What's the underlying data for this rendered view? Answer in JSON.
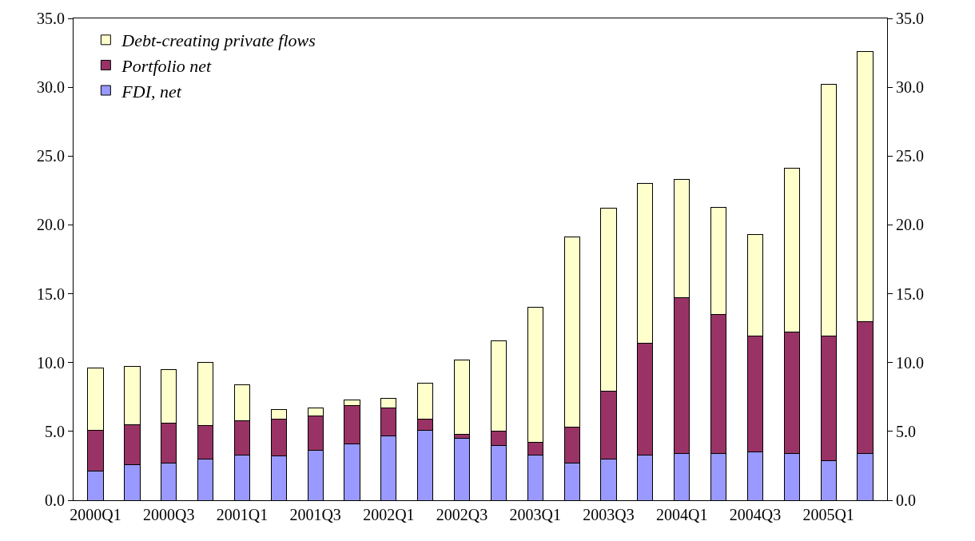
{
  "chart_data": {
    "type": "bar",
    "stacked": true,
    "categories": [
      "2000Q1",
      null,
      "2000Q3",
      null,
      "2001Q1",
      null,
      "2001Q3",
      null,
      "2002Q1",
      null,
      "2002Q3",
      null,
      "2003Q1",
      null,
      "2003Q3",
      null,
      "2004Q1",
      null,
      "2004Q3",
      null,
      "2005Q1",
      null
    ],
    "series": [
      {
        "name": "FDI, net",
        "color": "#9999ff",
        "values": [
          2.1,
          2.6,
          2.7,
          3.0,
          3.3,
          3.2,
          3.6,
          4.1,
          4.7,
          5.1,
          4.5,
          4.0,
          3.3,
          2.7,
          3.0,
          3.3,
          3.4,
          3.4,
          3.5,
          3.4,
          2.9,
          3.4
        ]
      },
      {
        "name": "Portfolio net",
        "color": "#993366",
        "values": [
          3.0,
          2.9,
          2.9,
          2.4,
          2.5,
          2.7,
          2.5,
          2.8,
          2.0,
          0.8,
          0.3,
          1.0,
          0.9,
          2.6,
          4.9,
          8.1,
          11.3,
          10.1,
          8.4,
          8.8,
          9.0,
          9.6
        ]
      },
      {
        "name": "Debt-creating private flows",
        "color": "#ffffcc",
        "values": [
          4.5,
          4.2,
          3.9,
          4.6,
          2.6,
          0.7,
          0.6,
          0.4,
          0.7,
          2.6,
          5.4,
          6.6,
          9.8,
          13.8,
          13.3,
          11.6,
          8.6,
          7.8,
          7.4,
          11.9,
          18.3,
          19.6
        ]
      }
    ],
    "ylim": [
      0,
      35
    ],
    "yticks": [
      {
        "value": 0,
        "label": "0.0"
      },
      {
        "value": 5,
        "label": "5.0"
      },
      {
        "value": 10,
        "label": "10.0"
      },
      {
        "value": 15,
        "label": "15.0"
      },
      {
        "value": 20,
        "label": "20.0"
      },
      {
        "value": 25,
        "label": "25.0"
      },
      {
        "value": 30,
        "label": "30.0"
      },
      {
        "value": 35,
        "label": "35.0"
      }
    ],
    "y2lim": [
      0,
      35
    ],
    "y2ticks": [
      {
        "value": 0,
        "label": "0.0"
      },
      {
        "value": 5,
        "label": "5.0"
      },
      {
        "value": 10,
        "label": "10.0"
      },
      {
        "value": 15,
        "label": "15.0"
      },
      {
        "value": 20,
        "label": "20.0"
      },
      {
        "value": 25,
        "label": "25.0"
      },
      {
        "value": 30,
        "label": "30.0"
      },
      {
        "value": 35,
        "label": "35.0"
      }
    ],
    "grid": false,
    "legend": "top left"
  }
}
